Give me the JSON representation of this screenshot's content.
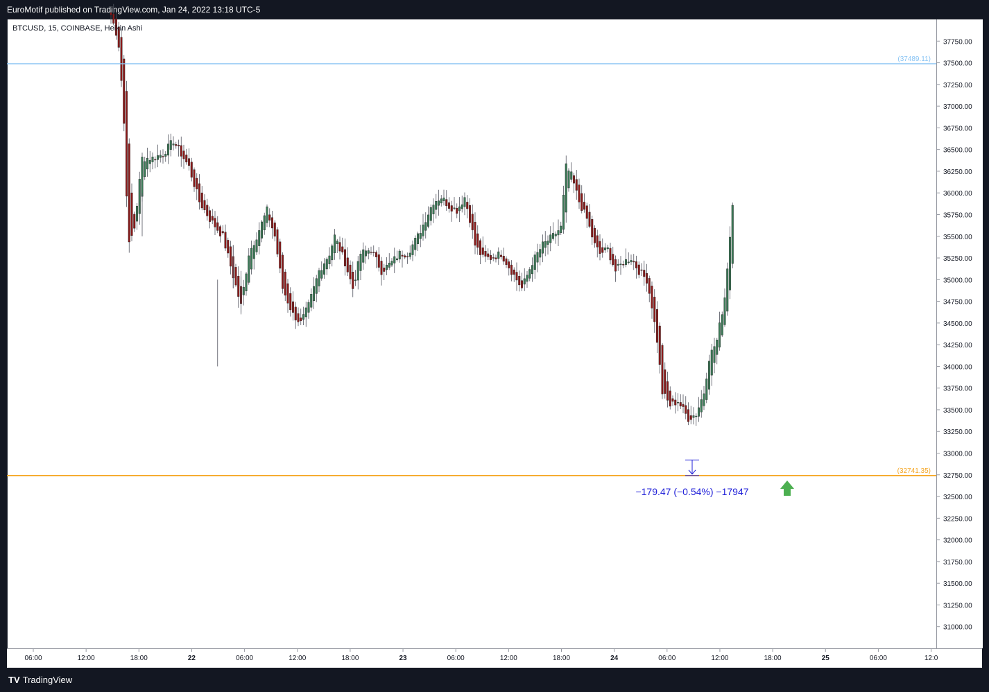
{
  "header": {
    "published_text": "EuroMotif published on TradingView.com, Jan 24, 2022 13:18 UTC-5"
  },
  "symbol": {
    "title": "BTCUSD, 15, COINBASE, Heikin Ashi"
  },
  "footer": {
    "brand": "TradingView",
    "logo": "tv-logo-icon"
  },
  "colors": {
    "up": "#3b7a57",
    "down": "#8b1a1a",
    "wick": "#50535e",
    "resistance": "#89c4f4",
    "support": "#f5a623",
    "measure": "#2121d8",
    "arrow": "#4caf50"
  },
  "chart_data": {
    "type": "candlestick",
    "ylim": [
      30750,
      38000
    ],
    "y_ticks": [
      "31000.00",
      "31250.00",
      "31500.00",
      "31750.00",
      "32000.00",
      "32250.00",
      "32500.00",
      "32750.00",
      "33000.00",
      "33250.00",
      "33500.00",
      "33750.00",
      "34000.00",
      "34250.00",
      "34500.00",
      "34750.00",
      "35000.00",
      "35250.00",
      "35500.00",
      "35750.00",
      "36000.00",
      "36250.00",
      "36500.00",
      "36750.00",
      "37000.00",
      "37250.00",
      "37500.00",
      "37750.00"
    ],
    "x_ticks": [
      "06:00",
      "12:00",
      "18:00",
      "22",
      "06:00",
      "12:00",
      "18:00",
      "23",
      "06:00",
      "12:00",
      "18:00",
      "24",
      "06:00",
      "12:00",
      "18:00",
      "25",
      "06:00",
      "12:0"
    ],
    "x_tick_bold": [
      false,
      false,
      false,
      true,
      false,
      false,
      false,
      true,
      false,
      false,
      false,
      true,
      false,
      false,
      false,
      true,
      false,
      false
    ],
    "anchors": [
      [
        0,
        38050
      ],
      [
        2,
        37850
      ],
      [
        3,
        37700
      ],
      [
        4,
        37300
      ],
      [
        5,
        36800
      ],
      [
        6,
        36000
      ],
      [
        7,
        35400
      ],
      [
        9,
        35600
      ],
      [
        12,
        36400
      ],
      [
        16,
        36400
      ],
      [
        20,
        36450
      ],
      [
        24,
        36600
      ],
      [
        26,
        36500
      ],
      [
        30,
        36300
      ],
      [
        34,
        35900
      ],
      [
        38,
        35700
      ],
      [
        43,
        35500
      ],
      [
        50,
        34700
      ],
      [
        53,
        35300
      ],
      [
        56,
        35500
      ],
      [
        60,
        35800
      ],
      [
        63,
        35500
      ],
      [
        66,
        34900
      ],
      [
        70,
        34600
      ],
      [
        73,
        34500
      ],
      [
        76,
        34700
      ],
      [
        80,
        35100
      ],
      [
        84,
        35300
      ],
      [
        86,
        35500
      ],
      [
        90,
        35200
      ],
      [
        93,
        34900
      ],
      [
        96,
        35300
      ],
      [
        100,
        35350
      ],
      [
        104,
        35100
      ],
      [
        108,
        35200
      ],
      [
        111,
        35300
      ],
      [
        114,
        35300
      ],
      [
        118,
        35500
      ],
      [
        121,
        35700
      ],
      [
        124,
        35900
      ],
      [
        127,
        35950
      ],
      [
        130,
        35850
      ],
      [
        133,
        35800
      ],
      [
        136,
        35950
      ],
      [
        138,
        35700
      ],
      [
        140,
        35400
      ],
      [
        143,
        35250
      ],
      [
        146,
        35250
      ],
      [
        150,
        35300
      ],
      [
        154,
        35100
      ],
      [
        158,
        34900
      ],
      [
        162,
        35200
      ],
      [
        166,
        35400
      ],
      [
        170,
        35500
      ],
      [
        173,
        35600
      ],
      [
        175,
        36300
      ],
      [
        177,
        36200
      ],
      [
        180,
        35900
      ],
      [
        183,
        35700
      ],
      [
        186,
        35400
      ],
      [
        188,
        35300
      ],
      [
        191,
        35350
      ],
      [
        194,
        35100
      ],
      [
        197,
        35200
      ],
      [
        200,
        35250
      ],
      [
        203,
        35100
      ],
      [
        206,
        35000
      ],
      [
        208,
        34700
      ],
      [
        210,
        34300
      ],
      [
        212,
        33700
      ],
      [
        215,
        33550
      ],
      [
        218,
        33600
      ],
      [
        222,
        33400
      ],
      [
        225,
        33450
      ],
      [
        228,
        33700
      ],
      [
        230,
        34100
      ],
      [
        233,
        34300
      ],
      [
        236,
        34800
      ],
      [
        238,
        35500
      ],
      [
        239,
        35900
      ]
    ],
    "tick_wicks": [
      [
        12,
        36000,
        35500
      ],
      [
        41,
        35000,
        34000
      ],
      [
        47,
        35400,
        34900
      ],
      [
        50,
        35100,
        34600
      ]
    ],
    "annotations": {
      "resistance": {
        "value": 37489.11,
        "label": "(37489.11)"
      },
      "support": {
        "value": 32741.35,
        "label": "(32741.35)"
      },
      "measure": {
        "from": 32920.82,
        "to": 32741.35,
        "label": "−179.47 (−0.54%) −17947"
      }
    }
  }
}
